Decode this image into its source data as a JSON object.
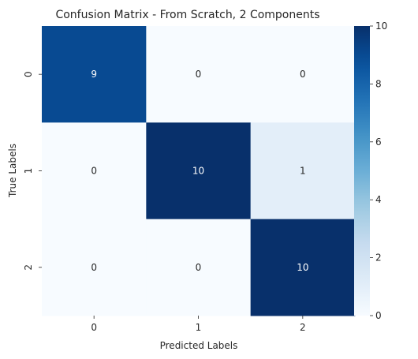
{
  "chart_data": {
    "type": "heatmap",
    "title": "Confusion Matrix - From Scratch, 2 Components",
    "xlabel": "Predicted Labels",
    "ylabel": "True Labels",
    "x_categories": [
      "0",
      "1",
      "2"
    ],
    "y_categories": [
      "0",
      "1",
      "2"
    ],
    "values": [
      [
        9,
        0,
        0
      ],
      [
        0,
        10,
        1
      ],
      [
        0,
        0,
        10
      ]
    ],
    "annotations": [
      [
        "9",
        "0",
        "0"
      ],
      [
        "0",
        "10",
        "1"
      ],
      [
        "0",
        "0",
        "10"
      ]
    ],
    "colormap": "Blues",
    "vmin": 0,
    "vmax": 10,
    "colorbar_ticks": [
      0,
      2,
      4,
      6,
      8,
      10
    ],
    "colorbar_tick_labels": [
      "0",
      "2",
      "4",
      "6",
      "8",
      "10"
    ],
    "colors": {
      "low": "#f7fbff",
      "high": "#08306b",
      "text_light": "#ffffff",
      "text_dark": "#262626"
    }
  }
}
